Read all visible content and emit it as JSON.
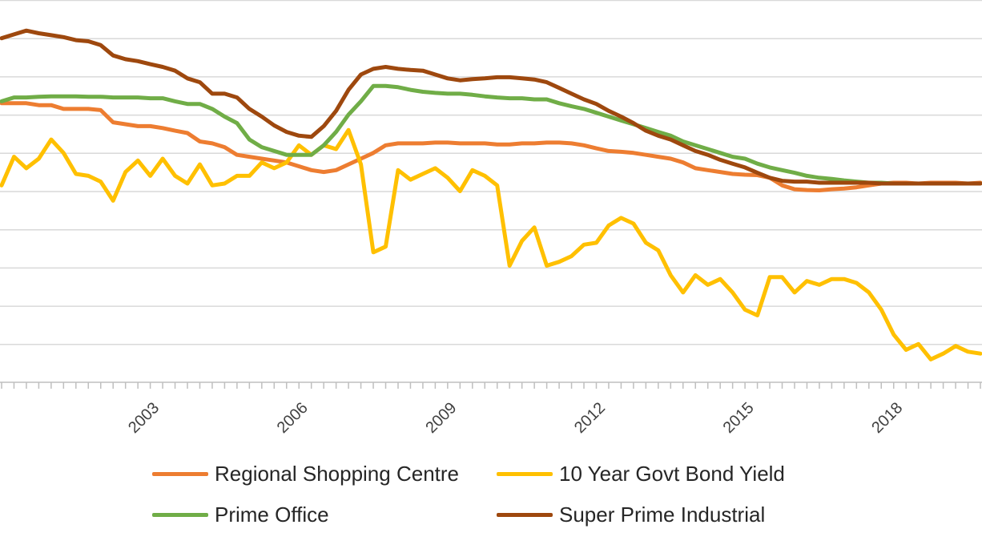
{
  "chart_data": {
    "type": "line",
    "title": "",
    "xlabel": "",
    "ylabel": "",
    "x_start": 2000.0,
    "x_end": 2019.75,
    "x_ticks": [
      "2003",
      "2006",
      "2009",
      "2012",
      "2015",
      "2018"
    ],
    "ylim": [
      0,
      10
    ],
    "gridlines": 10,
    "grid": true,
    "legend_position": "bottom",
    "series": [
      {
        "name": "Regional Shopping Centre",
        "color": "#ED7D31",
        "values": [
          7.3,
          7.3,
          7.3,
          7.25,
          7.25,
          7.15,
          7.15,
          7.15,
          7.12,
          6.8,
          6.75,
          6.7,
          6.7,
          6.65,
          6.58,
          6.52,
          6.3,
          6.25,
          6.15,
          5.95,
          5.9,
          5.85,
          5.8,
          5.75,
          5.65,
          5.55,
          5.5,
          5.55,
          5.7,
          5.85,
          6.0,
          6.2,
          6.25,
          6.25,
          6.25,
          6.27,
          6.27,
          6.25,
          6.25,
          6.25,
          6.22,
          6.22,
          6.25,
          6.25,
          6.27,
          6.27,
          6.25,
          6.2,
          6.12,
          6.05,
          6.03,
          6.0,
          5.95,
          5.9,
          5.85,
          5.75,
          5.6,
          5.55,
          5.5,
          5.45,
          5.43,
          5.42,
          5.35,
          5.15,
          5.05,
          5.03,
          5.02,
          5.05,
          5.07,
          5.1,
          5.15,
          5.2,
          5.22,
          5.22,
          5.2,
          5.22,
          5.22,
          5.22,
          5.2,
          5.22
        ]
      },
      {
        "name": "10 Year Govt Bond Yield",
        "color": "#FFC000",
        "values": [
          5.15,
          5.9,
          5.6,
          5.85,
          6.35,
          6.0,
          5.45,
          5.4,
          5.25,
          4.75,
          5.5,
          5.8,
          5.4,
          5.85,
          5.4,
          5.2,
          5.7,
          5.15,
          5.2,
          5.4,
          5.4,
          5.75,
          5.6,
          5.75,
          6.2,
          5.95,
          6.2,
          6.1,
          6.6,
          5.7,
          3.4,
          3.55,
          5.55,
          5.3,
          5.45,
          5.6,
          5.35,
          5.0,
          5.55,
          5.4,
          5.15,
          3.05,
          3.7,
          4.05,
          3.05,
          3.15,
          3.3,
          3.6,
          3.65,
          4.1,
          4.3,
          4.15,
          3.65,
          3.45,
          2.8,
          2.35,
          2.8,
          2.55,
          2.7,
          2.35,
          1.9,
          1.75,
          2.75,
          2.75,
          2.35,
          2.65,
          2.55,
          2.7,
          2.7,
          2.6,
          2.35,
          1.9,
          1.25,
          0.85,
          1.0,
          0.6,
          0.75,
          0.95,
          0.8,
          0.75
        ]
      },
      {
        "name": "Prime Office",
        "color": "#70AD47",
        "values": [
          7.35,
          7.45,
          7.45,
          7.47,
          7.48,
          7.48,
          7.48,
          7.47,
          7.47,
          7.45,
          7.45,
          7.45,
          7.43,
          7.43,
          7.35,
          7.28,
          7.28,
          7.15,
          6.95,
          6.78,
          6.35,
          6.15,
          6.05,
          5.95,
          5.95,
          5.95,
          6.2,
          6.55,
          7.0,
          7.35,
          7.75,
          7.75,
          7.72,
          7.65,
          7.6,
          7.57,
          7.55,
          7.55,
          7.52,
          7.48,
          7.45,
          7.43,
          7.43,
          7.4,
          7.4,
          7.3,
          7.22,
          7.15,
          7.05,
          6.95,
          6.85,
          6.75,
          6.65,
          6.55,
          6.45,
          6.3,
          6.2,
          6.1,
          6.0,
          5.9,
          5.85,
          5.72,
          5.62,
          5.55,
          5.48,
          5.4,
          5.35,
          5.32,
          5.28,
          5.25,
          5.22,
          5.22,
          5.2,
          5.2,
          5.2,
          5.2,
          5.2,
          5.2,
          5.2,
          5.2
        ]
      },
      {
        "name": "Super Prime Industrial",
        "color": "#9E480E",
        "values": [
          9.0,
          9.1,
          9.2,
          9.13,
          9.08,
          9.03,
          8.95,
          8.92,
          8.82,
          8.55,
          8.45,
          8.4,
          8.32,
          8.25,
          8.15,
          7.95,
          7.85,
          7.55,
          7.55,
          7.45,
          7.15,
          6.95,
          6.72,
          6.55,
          6.45,
          6.42,
          6.7,
          7.1,
          7.65,
          8.05,
          8.2,
          8.25,
          8.2,
          8.17,
          8.15,
          8.05,
          7.95,
          7.9,
          7.93,
          7.95,
          7.98,
          7.98,
          7.95,
          7.92,
          7.85,
          7.7,
          7.55,
          7.4,
          7.28,
          7.1,
          6.95,
          6.78,
          6.58,
          6.45,
          6.35,
          6.2,
          6.05,
          5.95,
          5.82,
          5.72,
          5.62,
          5.48,
          5.35,
          5.27,
          5.25,
          5.25,
          5.22,
          5.22,
          5.22,
          5.22,
          5.22,
          5.2,
          5.2,
          5.2,
          5.2,
          5.2,
          5.2,
          5.2,
          5.2,
          5.2
        ]
      }
    ]
  }
}
